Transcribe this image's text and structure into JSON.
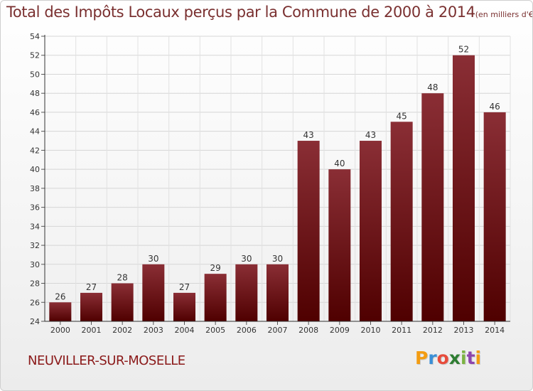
{
  "title": "Total des Impôts Locaux perçus par la Commune de 2000 à 2014",
  "unit": "(en milliers d'€)",
  "commune": "NEUVILLER-SUR-MOSELLE",
  "brand": {
    "letters": [
      "P",
      "r",
      "o",
      "x",
      "i",
      "t",
      "i"
    ],
    "colors": [
      "#f39c12",
      "#3a8fd6",
      "#e74c3c",
      "#2e7d32",
      "#7cb342",
      "#8e44ad",
      "#f39c12"
    ]
  },
  "chart_data": {
    "type": "bar",
    "title": "Total des Impôts Locaux perçus par la Commune de 2000 à 2014",
    "xlabel": "",
    "ylabel": "",
    "categories": [
      "2000",
      "2001",
      "2002",
      "2003",
      "2004",
      "2005",
      "2006",
      "2007",
      "2008",
      "2009",
      "2010",
      "2011",
      "2012",
      "2013",
      "2014"
    ],
    "values": [
      26,
      27,
      28,
      30,
      27,
      29,
      30,
      30,
      43,
      40,
      43,
      45,
      48,
      52,
      46
    ],
    "ylim": [
      24,
      54
    ],
    "yticks": [
      24,
      26,
      28,
      30,
      32,
      34,
      36,
      38,
      40,
      42,
      44,
      46,
      48,
      50,
      52,
      54
    ],
    "grid": true,
    "bar_color": "#7a1a1f"
  }
}
